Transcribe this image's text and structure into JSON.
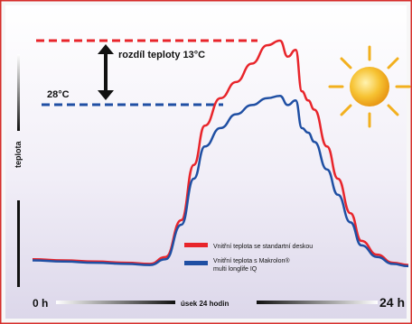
{
  "chart_data": {
    "type": "line",
    "ylabel": "teplota",
    "x_start_label": "0 h",
    "x_mid_label": "úsek 24 hodin",
    "x_end_label": "24 h",
    "xlim": [
      0,
      24
    ],
    "ylim": [
      0,
      100
    ],
    "annotations": {
      "difference": "rozdíl teploty 13°C",
      "level": "28°C"
    },
    "series": [
      {
        "name": "Vnitřní teplota se standartní deskou",
        "color": "#e8252b",
        "x": [
          0,
          2,
          4,
          6,
          7.5,
          8.5,
          9.5,
          10.3,
          11,
          12,
          13,
          14,
          15,
          15.8,
          16.3,
          16.8,
          17.2,
          17.6,
          18,
          18.8,
          19.5,
          20.3,
          21,
          22,
          23,
          24
        ],
        "y": [
          5,
          4.5,
          4,
          3.5,
          3,
          6,
          22,
          46,
          63,
          75,
          82,
          90,
          98,
          100,
          93,
          96,
          78,
          74,
          70,
          54,
          40,
          25,
          13,
          7,
          3.5,
          2.5
        ]
      },
      {
        "name": "Vnitřní teplota s Makrolon® multi longlife IQ",
        "color": "#1f4fa3",
        "x": [
          0,
          2,
          4,
          6,
          7.5,
          8.5,
          9.5,
          10.3,
          11,
          12,
          13,
          14,
          15,
          15.8,
          16.3,
          16.8,
          17.2,
          17.6,
          18,
          18.8,
          19.5,
          20.3,
          21,
          22,
          23,
          24
        ],
        "y": [
          4.5,
          4,
          3.5,
          3,
          2.5,
          5,
          20,
          40,
          54,
          62,
          68,
          72,
          75,
          76,
          72,
          74,
          62,
          60,
          56,
          44,
          33,
          21,
          11,
          6,
          3,
          2
        ]
      }
    ]
  },
  "colors": {
    "red_line": "#e8252b",
    "blue_line": "#1f4fa3",
    "frame": "#d62e2a",
    "sun": "#f2b01e"
  },
  "sun_icon": "sun-icon"
}
